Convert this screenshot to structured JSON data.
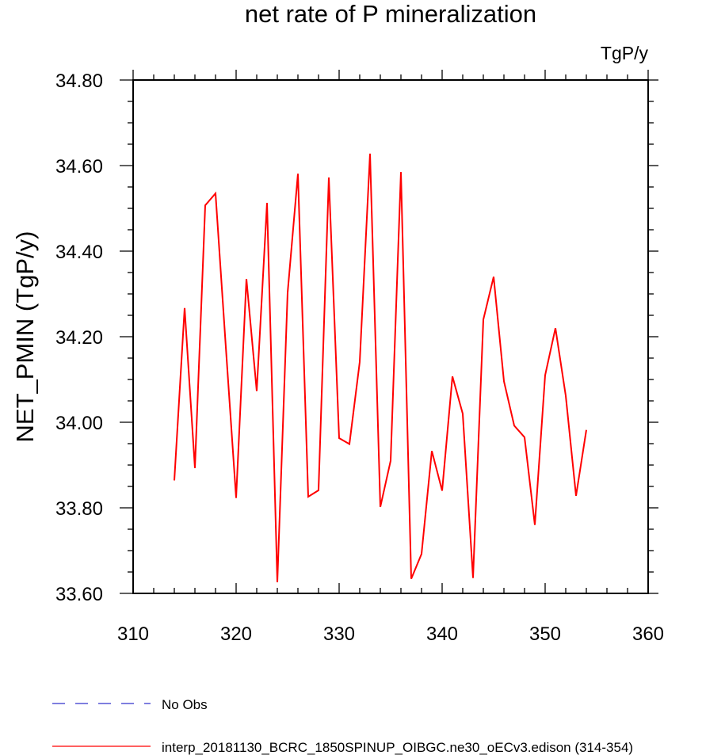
{
  "chart_data": {
    "type": "line",
    "title": "net rate of P mineralization",
    "units": "TgP/y",
    "xlabel": "",
    "ylabel": "NET_PMIN  (TgP/y)",
    "xlim": [
      310,
      360
    ],
    "ylim": [
      33.6,
      34.8
    ],
    "xticks": [
      310,
      320,
      330,
      340,
      350,
      360
    ],
    "xtick_labels": [
      "310",
      "320",
      "330",
      "340",
      "350",
      "360"
    ],
    "yticks": [
      33.6,
      33.8,
      34.0,
      34.2,
      34.4,
      34.6,
      34.8
    ],
    "ytick_labels": [
      "33.60",
      "33.80",
      "34.00",
      "34.20",
      "34.40",
      "34.60",
      "34.80"
    ],
    "grid": false,
    "legend_position": "bottom-left",
    "series": [
      {
        "name": "interp_20181130_BCRC_1850SPINUP_OIBGC.ne30_oECv3.edison (314-354)",
        "color": "#ff0000",
        "style": "solid",
        "x": [
          314,
          315,
          316,
          317,
          318,
          319,
          320,
          321,
          322,
          323,
          324,
          325,
          326,
          327,
          328,
          329,
          330,
          331,
          332,
          333,
          334,
          335,
          336,
          337,
          338,
          339,
          340,
          341,
          342,
          343,
          344,
          345,
          346,
          347,
          348,
          349,
          350,
          351,
          352,
          353,
          354
        ],
        "values": [
          33.864,
          34.267,
          33.893,
          34.507,
          34.535,
          34.176,
          33.823,
          34.335,
          34.073,
          34.513,
          33.626,
          34.303,
          34.581,
          33.826,
          33.841,
          34.572,
          33.963,
          33.949,
          34.141,
          34.628,
          33.802,
          33.91,
          34.585,
          33.634,
          33.692,
          33.933,
          33.84,
          34.107,
          34.02,
          33.636,
          34.24,
          34.34,
          34.096,
          33.992,
          33.965,
          33.76,
          34.11,
          34.22,
          34.062,
          33.828,
          33.982
        ]
      }
    ],
    "legend": [
      {
        "label": "No Obs",
        "color": "#3333cc",
        "style": "dashed"
      },
      {
        "label": "interp_20181130_BCRC_1850SPINUP_OIBGC.ne30_oECv3.edison (314-354)",
        "color": "#ff0000",
        "style": "solid"
      }
    ]
  }
}
